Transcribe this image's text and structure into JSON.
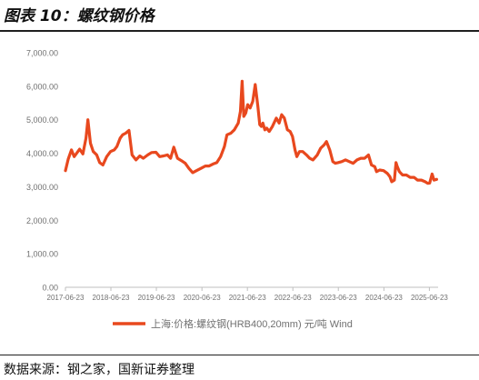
{
  "figure": {
    "title": "图表 10：螺纹钢价格",
    "source": "数据来源：钢之家，国新证券整理"
  },
  "colors": {
    "line": "#e8481e",
    "axis_text": "#707070",
    "axis_line": "#bfbfbf"
  },
  "chart_data": {
    "type": "line",
    "title": "",
    "xlabel": "",
    "ylabel": "",
    "ylim": [
      0,
      7000
    ],
    "xlim": [
      "2017-06-23",
      "2025-09-01"
    ],
    "y_ticks": [
      "0.00",
      "1,000.00",
      "2,000.00",
      "3,000.00",
      "4,000.00",
      "5,000.00",
      "6,000.00",
      "7,000.00"
    ],
    "x_ticks": [
      "2017-06-23",
      "2018-06-23",
      "2019-06-23",
      "2020-06-23",
      "2021-06-23",
      "2022-06-23",
      "2023-06-23",
      "2024-06-23",
      "2025-06-23"
    ],
    "grid": false,
    "legend_position": "bottom",
    "series": [
      {
        "name": "上海:价格:螺纹钢(HRB400,20mm) 元/吨 Wind",
        "x": [
          "2017-06-23",
          "2017-07-15",
          "2017-08-10",
          "2017-09-01",
          "2017-10-15",
          "2017-11-10",
          "2017-12-05",
          "2017-12-20",
          "2018-01-10",
          "2018-02-01",
          "2018-03-01",
          "2018-03-25",
          "2018-04-20",
          "2018-05-20",
          "2018-06-20",
          "2018-07-20",
          "2018-08-10",
          "2018-09-05",
          "2018-09-25",
          "2018-10-20",
          "2018-11-15",
          "2018-12-10",
          "2019-01-10",
          "2019-02-10",
          "2019-03-10",
          "2019-04-15",
          "2019-05-15",
          "2019-06-20",
          "2019-07-20",
          "2019-08-20",
          "2019-09-20",
          "2019-10-15",
          "2019-11-10",
          "2019-12-10",
          "2020-01-10",
          "2020-02-10",
          "2020-03-10",
          "2020-04-10",
          "2020-05-10",
          "2020-06-20",
          "2020-07-20",
          "2020-08-20",
          "2020-09-20",
          "2020-10-20",
          "2020-11-20",
          "2020-12-20",
          "2021-01-10",
          "2021-02-10",
          "2021-03-10",
          "2021-04-10",
          "2021-04-28",
          "2021-05-12",
          "2021-05-25",
          "2021-06-10",
          "2021-06-25",
          "2021-07-15",
          "2021-08-05",
          "2021-08-25",
          "2021-09-15",
          "2021-09-30",
          "2021-10-13",
          "2021-10-25",
          "2021-11-10",
          "2021-11-25",
          "2021-12-15",
          "2022-01-10",
          "2022-02-10",
          "2022-03-05",
          "2022-03-25",
          "2022-04-15",
          "2022-05-10",
          "2022-06-01",
          "2022-06-20",
          "2022-07-10",
          "2022-07-25",
          "2022-08-15",
          "2022-09-10",
          "2022-10-10",
          "2022-11-05",
          "2022-12-01",
          "2023-01-05",
          "2023-02-01",
          "2023-03-01",
          "2023-03-20",
          "2023-04-15",
          "2023-05-10",
          "2023-05-30",
          "2023-06-20",
          "2023-07-20",
          "2023-08-20",
          "2023-09-20",
          "2023-10-20",
          "2023-11-20",
          "2023-12-20",
          "2024-01-20",
          "2024-02-20",
          "2024-03-15",
          "2024-04-10",
          "2024-04-25",
          "2024-05-20",
          "2024-06-20",
          "2024-07-20",
          "2024-08-10",
          "2024-08-25",
          "2024-09-15",
          "2024-09-28",
          "2024-10-08",
          "2024-10-25",
          "2024-11-20",
          "2024-12-20",
          "2025-01-20",
          "2025-02-20",
          "2025-03-20",
          "2025-04-20",
          "2025-05-20",
          "2025-06-10",
          "2025-06-25",
          "2025-07-15",
          "2025-07-30",
          "2025-08-20"
        ],
        "y": [
          3480,
          3820,
          4100,
          3900,
          4120,
          3980,
          4450,
          5000,
          4300,
          4050,
          3950,
          3720,
          3650,
          3900,
          4050,
          4100,
          4200,
          4450,
          4550,
          4600,
          4680,
          3950,
          3800,
          3920,
          3850,
          3950,
          4020,
          4030,
          3900,
          3920,
          3950,
          3850,
          4180,
          3850,
          3780,
          3700,
          3550,
          3420,
          3480,
          3560,
          3620,
          3620,
          3680,
          3720,
          3900,
          4200,
          4550,
          4600,
          4700,
          4900,
          5250,
          6150,
          5100,
          5200,
          5450,
          5350,
          5550,
          6050,
          5400,
          4850,
          4800,
          4900,
          4700,
          4750,
          4650,
          4800,
          5050,
          4900,
          5150,
          5050,
          4700,
          4650,
          4500,
          4100,
          3900,
          4050,
          4050,
          3950,
          3850,
          3800,
          3950,
          4150,
          4250,
          4350,
          4100,
          3750,
          3700,
          3720,
          3750,
          3800,
          3750,
          3700,
          3800,
          3850,
          3850,
          3950,
          3650,
          3600,
          3450,
          3500,
          3480,
          3400,
          3300,
          3150,
          3200,
          3720,
          3600,
          3450,
          3350,
          3350,
          3280,
          3280,
          3200,
          3200,
          3150,
          3100,
          3110,
          3380,
          3200,
          3220
        ]
      }
    ]
  }
}
